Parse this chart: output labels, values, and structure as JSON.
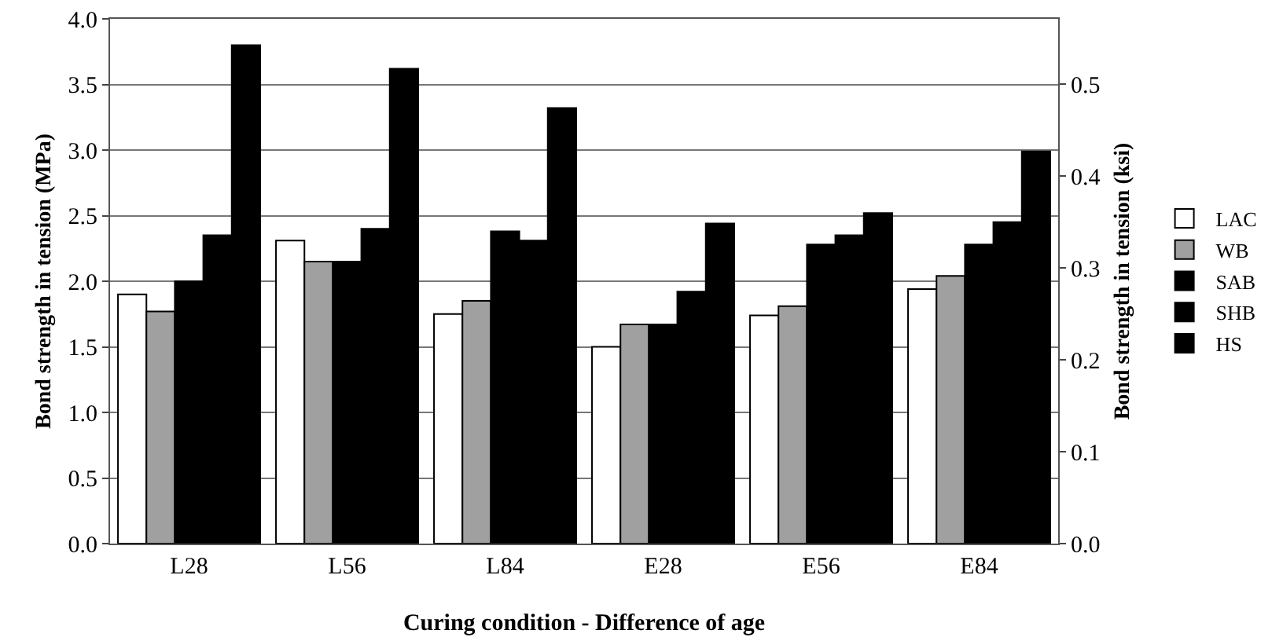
{
  "chart_data": {
    "type": "bar",
    "xlabel": "Curing condition - Difference of age",
    "ylabel": "Bond strength in tension (MPa)",
    "y2label": "Bond strength in tension (ksi)",
    "categories": [
      "L28",
      "L56",
      "L84",
      "E28",
      "E56",
      "E84"
    ],
    "series": [
      {
        "name": "LAC",
        "color": "#ffffff",
        "values": [
          1.9,
          2.31,
          1.75,
          1.5,
          1.74,
          1.94
        ]
      },
      {
        "name": "WB",
        "color": "#a0a0a0",
        "values": [
          1.77,
          2.15,
          1.85,
          1.67,
          1.81,
          2.04
        ]
      },
      {
        "name": "SAB",
        "color": "#000000",
        "values": [
          2.0,
          2.15,
          2.38,
          1.67,
          2.28,
          2.28
        ]
      },
      {
        "name": "SHB",
        "color": "#000000",
        "values": [
          2.35,
          2.4,
          2.31,
          1.92,
          2.35,
          2.45
        ]
      },
      {
        "name": "HS",
        "color": "#000000",
        "values": [
          3.8,
          3.62,
          3.32,
          2.44,
          2.52,
          2.99
        ]
      }
    ],
    "ylim": [
      0,
      4
    ],
    "yticks": [
      {
        "value": 0,
        "label": "0.0"
      },
      {
        "value": 0.5,
        "label": "0.5"
      },
      {
        "value": 1,
        "label": "1.0"
      },
      {
        "value": 1.5,
        "label": "1.5"
      },
      {
        "value": 2,
        "label": "2.0"
      },
      {
        "value": 2.5,
        "label": "2.5"
      },
      {
        "value": 3,
        "label": "3.0"
      },
      {
        "value": 3.5,
        "label": "3.5"
      },
      {
        "value": 4,
        "label": "4.0"
      }
    ],
    "y2lim": [
      0,
      0.571
    ],
    "y2ticks": [
      {
        "value": 0,
        "label": "0.0"
      },
      0.1,
      0.2,
      0.3,
      0.4,
      0.5
    ],
    "grid": "y",
    "legend": "right"
  }
}
